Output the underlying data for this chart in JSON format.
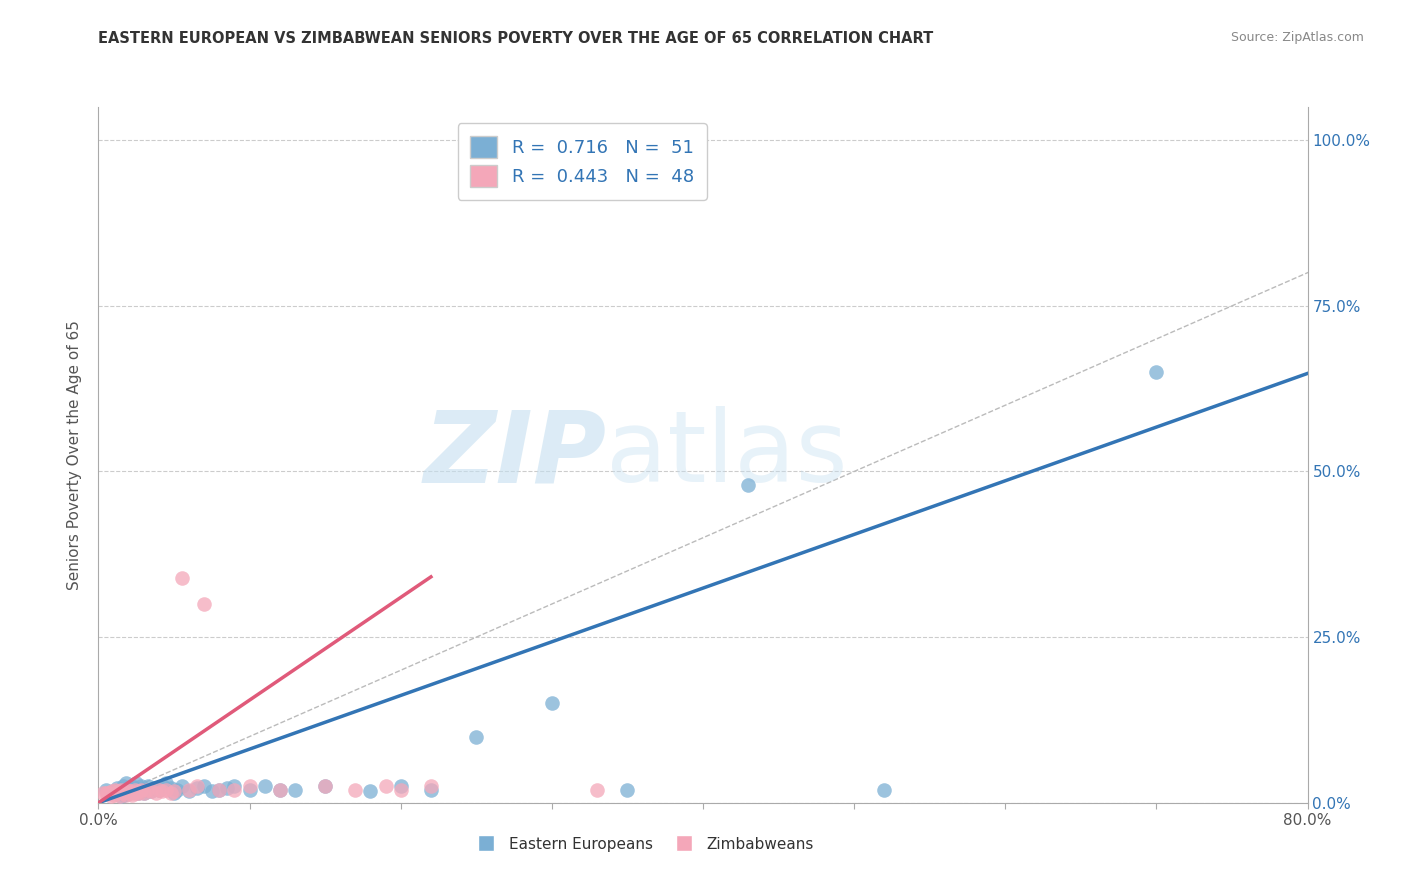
{
  "title": "EASTERN EUROPEAN VS ZIMBABWEAN SENIORS POVERTY OVER THE AGE OF 65 CORRELATION CHART",
  "source": "Source: ZipAtlas.com",
  "ylabel": "Seniors Poverty Over the Age of 65",
  "xlabel": "",
  "xlim": [
    0,
    0.8
  ],
  "ylim": [
    0,
    1.05
  ],
  "yticks": [
    0.0,
    0.25,
    0.5,
    0.75,
    1.0
  ],
  "ytick_labels_right": [
    "0.0%",
    "25.0%",
    "50.0%",
    "75.0%",
    "100.0%"
  ],
  "xticks": [
    0.0,
    0.1,
    0.2,
    0.3,
    0.4,
    0.5,
    0.6,
    0.7,
    0.8
  ],
  "xtick_labels": [
    "0.0%",
    "",
    "",
    "",
    "",
    "",
    "",
    "",
    "80.0%"
  ],
  "blue_R": 0.716,
  "blue_N": 51,
  "pink_R": 0.443,
  "pink_N": 48,
  "blue_color": "#7BAFD4",
  "pink_color": "#F4A7B9",
  "blue_line_color": "#3375B5",
  "pink_line_color": "#E05A7A",
  "diagonal_color": "#BBBBBB",
  "watermark_zip": "ZIP",
  "watermark_atlas": "atlas",
  "legend_label_blue": "Eastern Europeans",
  "legend_label_pink": "Zimbabweans",
  "blue_scatter_x": [
    0.005,
    0.008,
    0.01,
    0.012,
    0.015,
    0.016,
    0.017,
    0.018,
    0.019,
    0.02,
    0.021,
    0.022,
    0.023,
    0.024,
    0.025,
    0.026,
    0.027,
    0.028,
    0.03,
    0.031,
    0.033,
    0.035,
    0.037,
    0.04,
    0.043,
    0.045,
    0.048,
    0.05,
    0.052,
    0.055,
    0.06,
    0.065,
    0.07,
    0.075,
    0.08,
    0.085,
    0.09,
    0.1,
    0.11,
    0.12,
    0.13,
    0.15,
    0.18,
    0.2,
    0.22,
    0.25,
    0.3,
    0.35,
    0.43,
    0.52,
    0.7
  ],
  "blue_scatter_y": [
    0.02,
    0.015,
    0.018,
    0.022,
    0.01,
    0.025,
    0.012,
    0.03,
    0.018,
    0.015,
    0.02,
    0.025,
    0.018,
    0.022,
    0.03,
    0.015,
    0.02,
    0.025,
    0.015,
    0.02,
    0.025,
    0.018,
    0.022,
    0.02,
    0.025,
    0.03,
    0.022,
    0.015,
    0.02,
    0.025,
    0.018,
    0.022,
    0.025,
    0.018,
    0.02,
    0.022,
    0.025,
    0.02,
    0.025,
    0.02,
    0.02,
    0.025,
    0.018,
    0.025,
    0.02,
    0.1,
    0.15,
    0.02,
    0.48,
    0.02,
    0.65
  ],
  "pink_scatter_x": [
    0.003,
    0.005,
    0.006,
    0.007,
    0.008,
    0.009,
    0.01,
    0.011,
    0.012,
    0.013,
    0.014,
    0.015,
    0.016,
    0.017,
    0.018,
    0.019,
    0.02,
    0.021,
    0.022,
    0.023,
    0.024,
    0.025,
    0.026,
    0.027,
    0.028,
    0.03,
    0.032,
    0.035,
    0.038,
    0.04,
    0.042,
    0.045,
    0.048,
    0.05,
    0.055,
    0.06,
    0.065,
    0.07,
    0.08,
    0.09,
    0.1,
    0.12,
    0.15,
    0.17,
    0.19,
    0.2,
    0.22,
    0.33
  ],
  "pink_scatter_y": [
    0.015,
    0.015,
    0.015,
    0.015,
    0.01,
    0.018,
    0.012,
    0.02,
    0.015,
    0.018,
    0.01,
    0.02,
    0.015,
    0.018,
    0.012,
    0.02,
    0.015,
    0.018,
    0.012,
    0.015,
    0.02,
    0.015,
    0.018,
    0.015,
    0.02,
    0.015,
    0.02,
    0.018,
    0.015,
    0.02,
    0.018,
    0.02,
    0.015,
    0.018,
    0.34,
    0.02,
    0.025,
    0.3,
    0.02,
    0.02,
    0.025,
    0.02,
    0.025,
    0.02,
    0.025,
    0.02,
    0.025,
    0.02
  ]
}
